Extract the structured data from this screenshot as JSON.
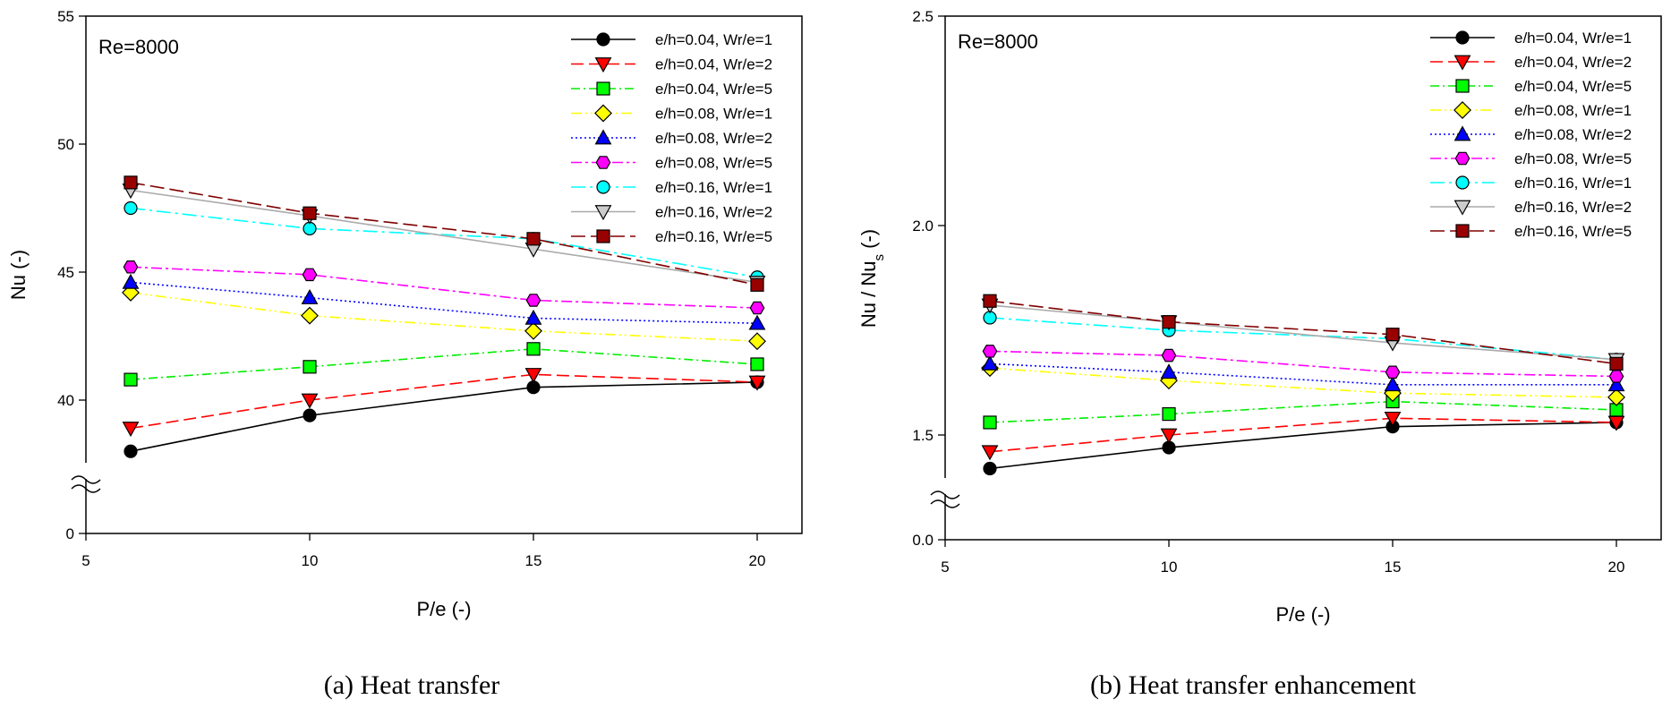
{
  "chart_data": [
    {
      "type": "line",
      "caption": "(a) Heat transfer",
      "annotation": "Re=8000",
      "xlabel": "P/e (-)",
      "ylabel": "Nu (-)",
      "xlim": [
        5,
        21
      ],
      "xticks": [
        5,
        10,
        15,
        20
      ],
      "axis_break": true,
      "broken_ylim": [
        35,
        55
      ],
      "yticks": [
        0,
        40,
        45,
        50,
        55
      ],
      "x": [
        6,
        10,
        15,
        20
      ],
      "grid": false,
      "legend_position": "top-right",
      "series": [
        {
          "name": "e/h=0.04, Wr/e=1",
          "values": [
            38.0,
            39.4,
            40.5,
            40.7
          ]
        },
        {
          "name": "e/h=0.04, Wr/e=2",
          "values": [
            38.9,
            40.0,
            41.0,
            40.7
          ]
        },
        {
          "name": "e/h=0.04, Wr/e=5",
          "values": [
            40.8,
            41.3,
            42.0,
            41.4
          ]
        },
        {
          "name": "e/h=0.08, Wr/e=1",
          "values": [
            44.2,
            43.3,
            42.7,
            42.3
          ]
        },
        {
          "name": "e/h=0.08, Wr/e=2",
          "values": [
            44.6,
            44.0,
            43.2,
            43.0
          ]
        },
        {
          "name": "e/h=0.08, Wr/e=5",
          "values": [
            45.2,
            44.9,
            43.9,
            43.6
          ]
        },
        {
          "name": "e/h=0.16, Wr/e=1",
          "values": [
            47.5,
            46.7,
            46.3,
            44.8
          ]
        },
        {
          "name": "e/h=0.16, Wr/e=2",
          "values": [
            48.2,
            47.2,
            45.9,
            44.6
          ]
        },
        {
          "name": "e/h=0.16, Wr/e=5",
          "values": [
            48.5,
            47.3,
            46.3,
            44.5
          ]
        }
      ]
    },
    {
      "type": "line",
      "caption": "(b) Heat transfer enhancement",
      "annotation": "Re=8000",
      "xlabel": "P/e (-)",
      "ylabel_main": "Nu / Nu",
      "ylabel_sub": "s",
      "ylabel_tail": " (-)",
      "xlim": [
        5,
        21
      ],
      "xticks": [
        5,
        10,
        15,
        20
      ],
      "axis_break": true,
      "broken_ylim": [
        1.25,
        2.5
      ],
      "yticks": [
        0.0,
        1.5,
        2.0,
        2.5
      ],
      "x": [
        6,
        10,
        15,
        20
      ],
      "grid": false,
      "legend_position": "top-right",
      "series": [
        {
          "name": "e/h=0.04, Wr/e=1",
          "values": [
            1.42,
            1.47,
            1.52,
            1.53
          ]
        },
        {
          "name": "e/h=0.04, Wr/e=2",
          "values": [
            1.46,
            1.5,
            1.54,
            1.53
          ]
        },
        {
          "name": "e/h=0.04, Wr/e=5",
          "values": [
            1.53,
            1.55,
            1.58,
            1.56
          ]
        },
        {
          "name": "e/h=0.08, Wr/e=1",
          "values": [
            1.66,
            1.63,
            1.6,
            1.59
          ]
        },
        {
          "name": "e/h=0.08, Wr/e=2",
          "values": [
            1.67,
            1.65,
            1.62,
            1.62
          ]
        },
        {
          "name": "e/h=0.08, Wr/e=5",
          "values": [
            1.7,
            1.69,
            1.65,
            1.64
          ]
        },
        {
          "name": "e/h=0.16, Wr/e=1",
          "values": [
            1.78,
            1.75,
            1.73,
            1.68
          ]
        },
        {
          "name": "e/h=0.16, Wr/e=2",
          "values": [
            1.81,
            1.77,
            1.72,
            1.68
          ]
        },
        {
          "name": "e/h=0.16, Wr/e=5",
          "values": [
            1.82,
            1.77,
            1.74,
            1.67
          ]
        }
      ]
    }
  ],
  "styles": [
    {
      "color": "#000000",
      "marker": "circle",
      "fill": "#000000",
      "dash": ""
    },
    {
      "color": "#ff0000",
      "marker": "triangle-down",
      "fill": "#ff0000",
      "dash": "14,6"
    },
    {
      "color": "#00ee00",
      "marker": "square",
      "fill": "#00ff00",
      "dash": "10,4,2,4"
    },
    {
      "color": "#ffff00",
      "marker": "diamond",
      "fill": "#ffff00",
      "dash": "12,4,2,4,2,4"
    },
    {
      "color": "#0000ff",
      "marker": "triangle-up",
      "fill": "#0000ff",
      "dash": "2,3"
    },
    {
      "color": "#ff00ff",
      "marker": "hexagon",
      "fill": "#ff00ff",
      "dash": "12,4,3,4"
    },
    {
      "color": "#00ffff",
      "marker": "circle",
      "fill": "#00ffff",
      "dash": "16,5,3,5"
    },
    {
      "color": "#aaaaaa",
      "marker": "triangle-down",
      "fill": "#cccccc",
      "dash": ""
    },
    {
      "color": "#800000",
      "marker": "square",
      "fill": "#990000",
      "dash": "16,6"
    }
  ]
}
